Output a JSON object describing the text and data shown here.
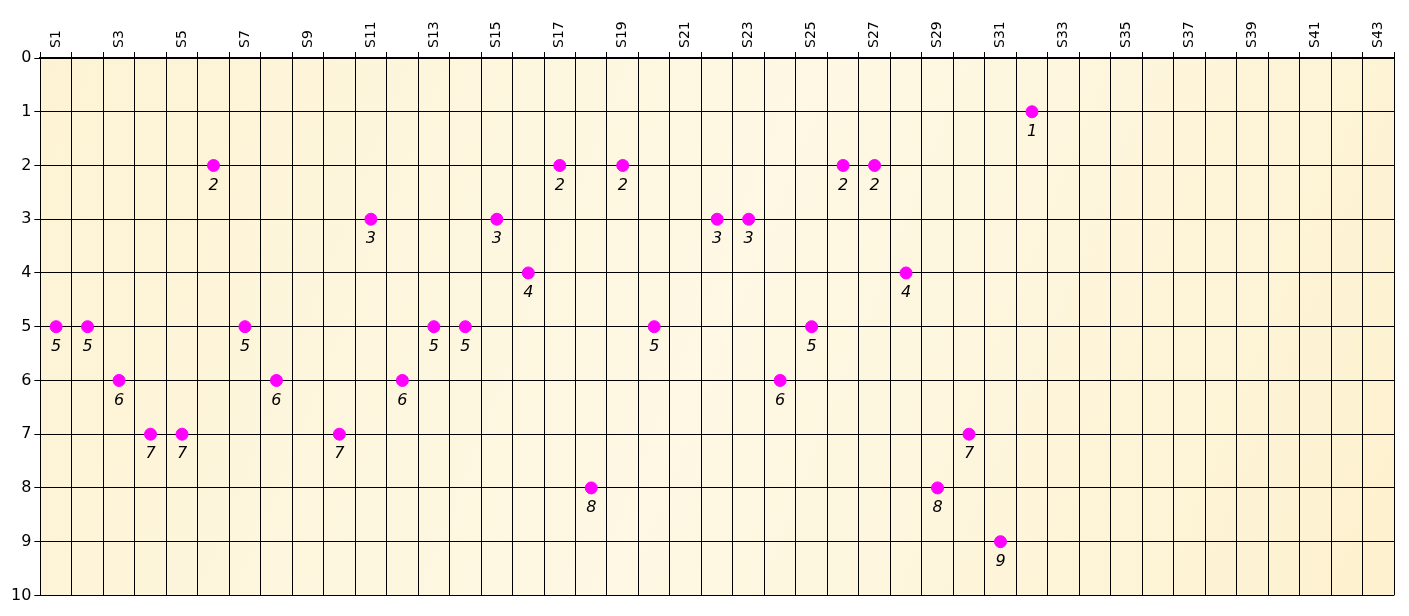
{
  "chart_data": {
    "type": "scatter",
    "categories": [
      "S1",
      null,
      "S3",
      null,
      "S5",
      null,
      "S7",
      null,
      "S9",
      null,
      "S11",
      null,
      "S13",
      null,
      "S15",
      null,
      "S17",
      null,
      "S19",
      null,
      "S21",
      null,
      "S23",
      null,
      "S25",
      null,
      "S27",
      null,
      "S29",
      null,
      "S31",
      null,
      "S33",
      null,
      "S35",
      null,
      "S37",
      null,
      "S39",
      null,
      "S41",
      null,
      "S43"
    ],
    "values": [
      5,
      5,
      6,
      7,
      7,
      2,
      5,
      6,
      null,
      7,
      3,
      6,
      5,
      5,
      3,
      4,
      2,
      8,
      2,
      5,
      null,
      3,
      3,
      6,
      5,
      2,
      2,
      4,
      8,
      7,
      9,
      1,
      null,
      null,
      null,
      null,
      null,
      null,
      null,
      null,
      null,
      null,
      null
    ],
    "color": "#ff00ff",
    "ylim": [
      10,
      0
    ],
    "yticks": [
      0,
      1,
      2,
      3,
      4,
      5,
      6,
      7,
      8,
      9,
      10
    ],
    "grid": true,
    "marker": "circle",
    "data_labels": true
  }
}
